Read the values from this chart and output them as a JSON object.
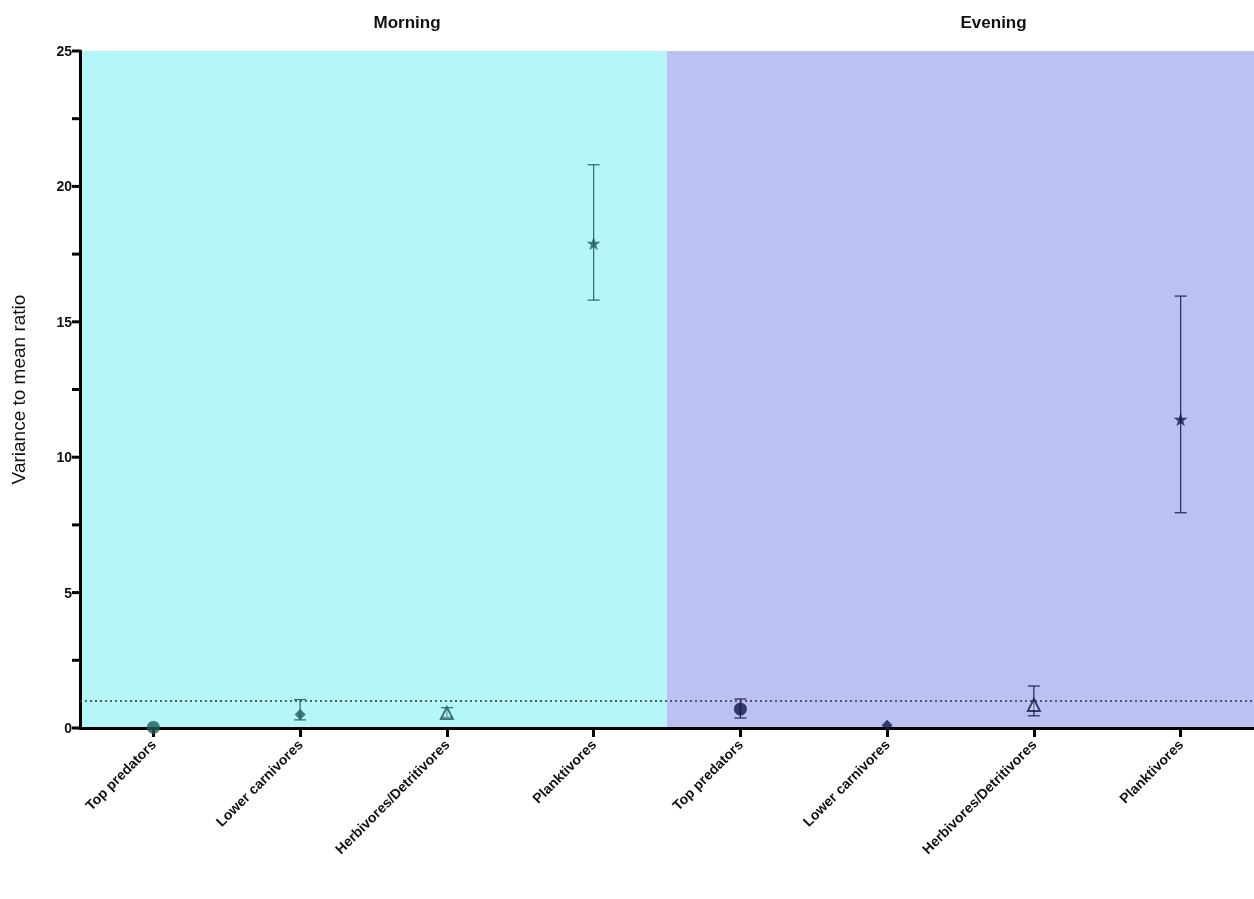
{
  "chart_data": {
    "type": "scatter",
    "ylabel": "Variance to mean ratio",
    "categories": [
      "Top predators",
      "Lower carnivores",
      "Herbivores/Detritivores",
      "Planktivores",
      "Top predators",
      "Lower carnivores",
      "Herbivores/Detritivores",
      "Planktivores"
    ],
    "series": [
      {
        "marker": "circle",
        "colors": [
          "#1d5c5a",
          null,
          null,
          null,
          "#131747",
          null,
          null,
          null
        ],
        "values": [
          0.02,
          null,
          null,
          null,
          0.7,
          null,
          null,
          null
        ],
        "errors": [
          null,
          null,
          null,
          null,
          [
            0.37,
            1.07
          ],
          null,
          null,
          null
        ]
      },
      {
        "marker": "diamond",
        "colors": [
          null,
          "#1d5c5a",
          null,
          null,
          null,
          "#131747",
          null,
          null
        ],
        "values": [
          null,
          0.5,
          null,
          null,
          null,
          0.1,
          null,
          null
        ],
        "errors": [
          null,
          [
            0.3,
            1.05
          ],
          null,
          null,
          null,
          null,
          null,
          null
        ]
      },
      {
        "marker": "triangle",
        "colors": [
          null,
          null,
          "#1d5c5a",
          null,
          null,
          null,
          "#131747",
          null
        ],
        "values": [
          null,
          null,
          0.55,
          null,
          null,
          null,
          0.85,
          null
        ],
        "errors": [
          null,
          null,
          [
            0.4,
            0.75
          ],
          null,
          null,
          null,
          [
            0.45,
            1.55
          ],
          null
        ]
      },
      {
        "marker": "star",
        "colors": [
          null,
          null,
          null,
          "#1d5c5a",
          null,
          null,
          null,
          "#131747"
        ],
        "values": [
          null,
          null,
          null,
          17.9,
          null,
          null,
          null,
          11.4
        ],
        "errors": [
          null,
          null,
          null,
          [
            15.8,
            20.8
          ],
          null,
          null,
          null,
          [
            7.95,
            15.95
          ]
        ]
      }
    ],
    "ylim": [
      0,
      25
    ],
    "yticks": [
      0,
      {
        "value": 2.5,
        "label": null
      },
      5,
      {
        "value": 7.5,
        "label": null
      },
      10,
      {
        "value": 12.5,
        "label": null
      },
      15,
      {
        "value": 17.5,
        "label": null
      },
      20,
      {
        "value": 22.5,
        "label": null
      },
      25
    ],
    "annotations": [
      "Morning",
      "Evening"
    ],
    "ref_lines": [
      {
        "axis": "y",
        "value": 1,
        "line_style": "dotted",
        "color": "#333333"
      }
    ]
  }
}
